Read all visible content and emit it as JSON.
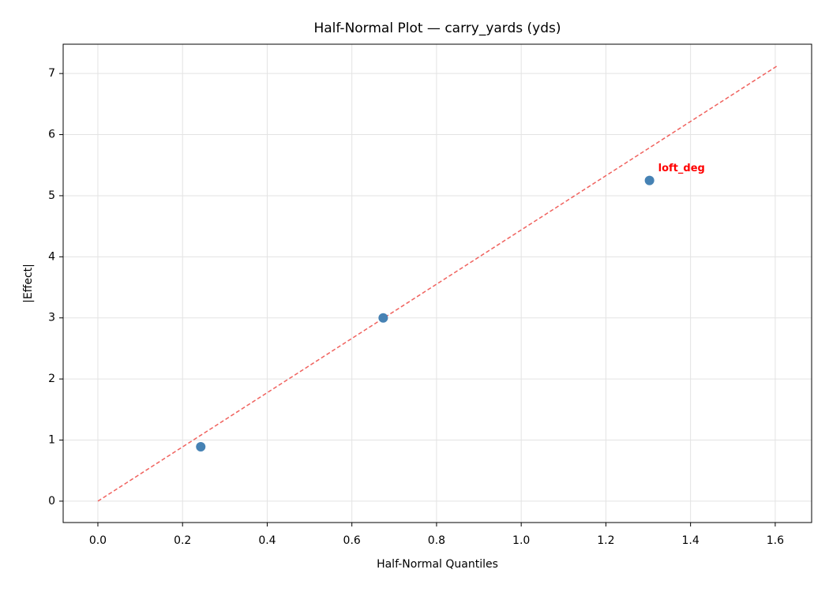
{
  "chart_data": {
    "type": "scatter",
    "title": "Half-Normal Plot — carry_yards (yds)",
    "x_label": "Half-Normal Quantiles",
    "y_label": "|Effect|",
    "points": {
      "x": [
        0.243,
        0.674,
        1.303
      ],
      "values": [
        0.89,
        3.0,
        5.25
      ],
      "labels": [
        null,
        null,
        "loft_deg"
      ],
      "color": "#4682b4",
      "label_color": "#ff0000"
    },
    "reference_line": {
      "x": [
        0,
        1.606
      ],
      "values": [
        0,
        7.13
      ],
      "color": "#f0625e",
      "dashed": true
    },
    "xlim": [
      -0.082,
      1.686
    ],
    "ylim": [
      -0.35,
      7.48
    ],
    "xticks": [
      {
        "value": 0,
        "label": "0.0"
      },
      0.2,
      0.4,
      0.6,
      0.8,
      {
        "value": 1,
        "label": "1.0"
      },
      1.2,
      1.4,
      1.6
    ],
    "yticks": [
      0,
      1,
      2,
      3,
      4,
      5,
      6,
      7
    ],
    "grid": true
  }
}
